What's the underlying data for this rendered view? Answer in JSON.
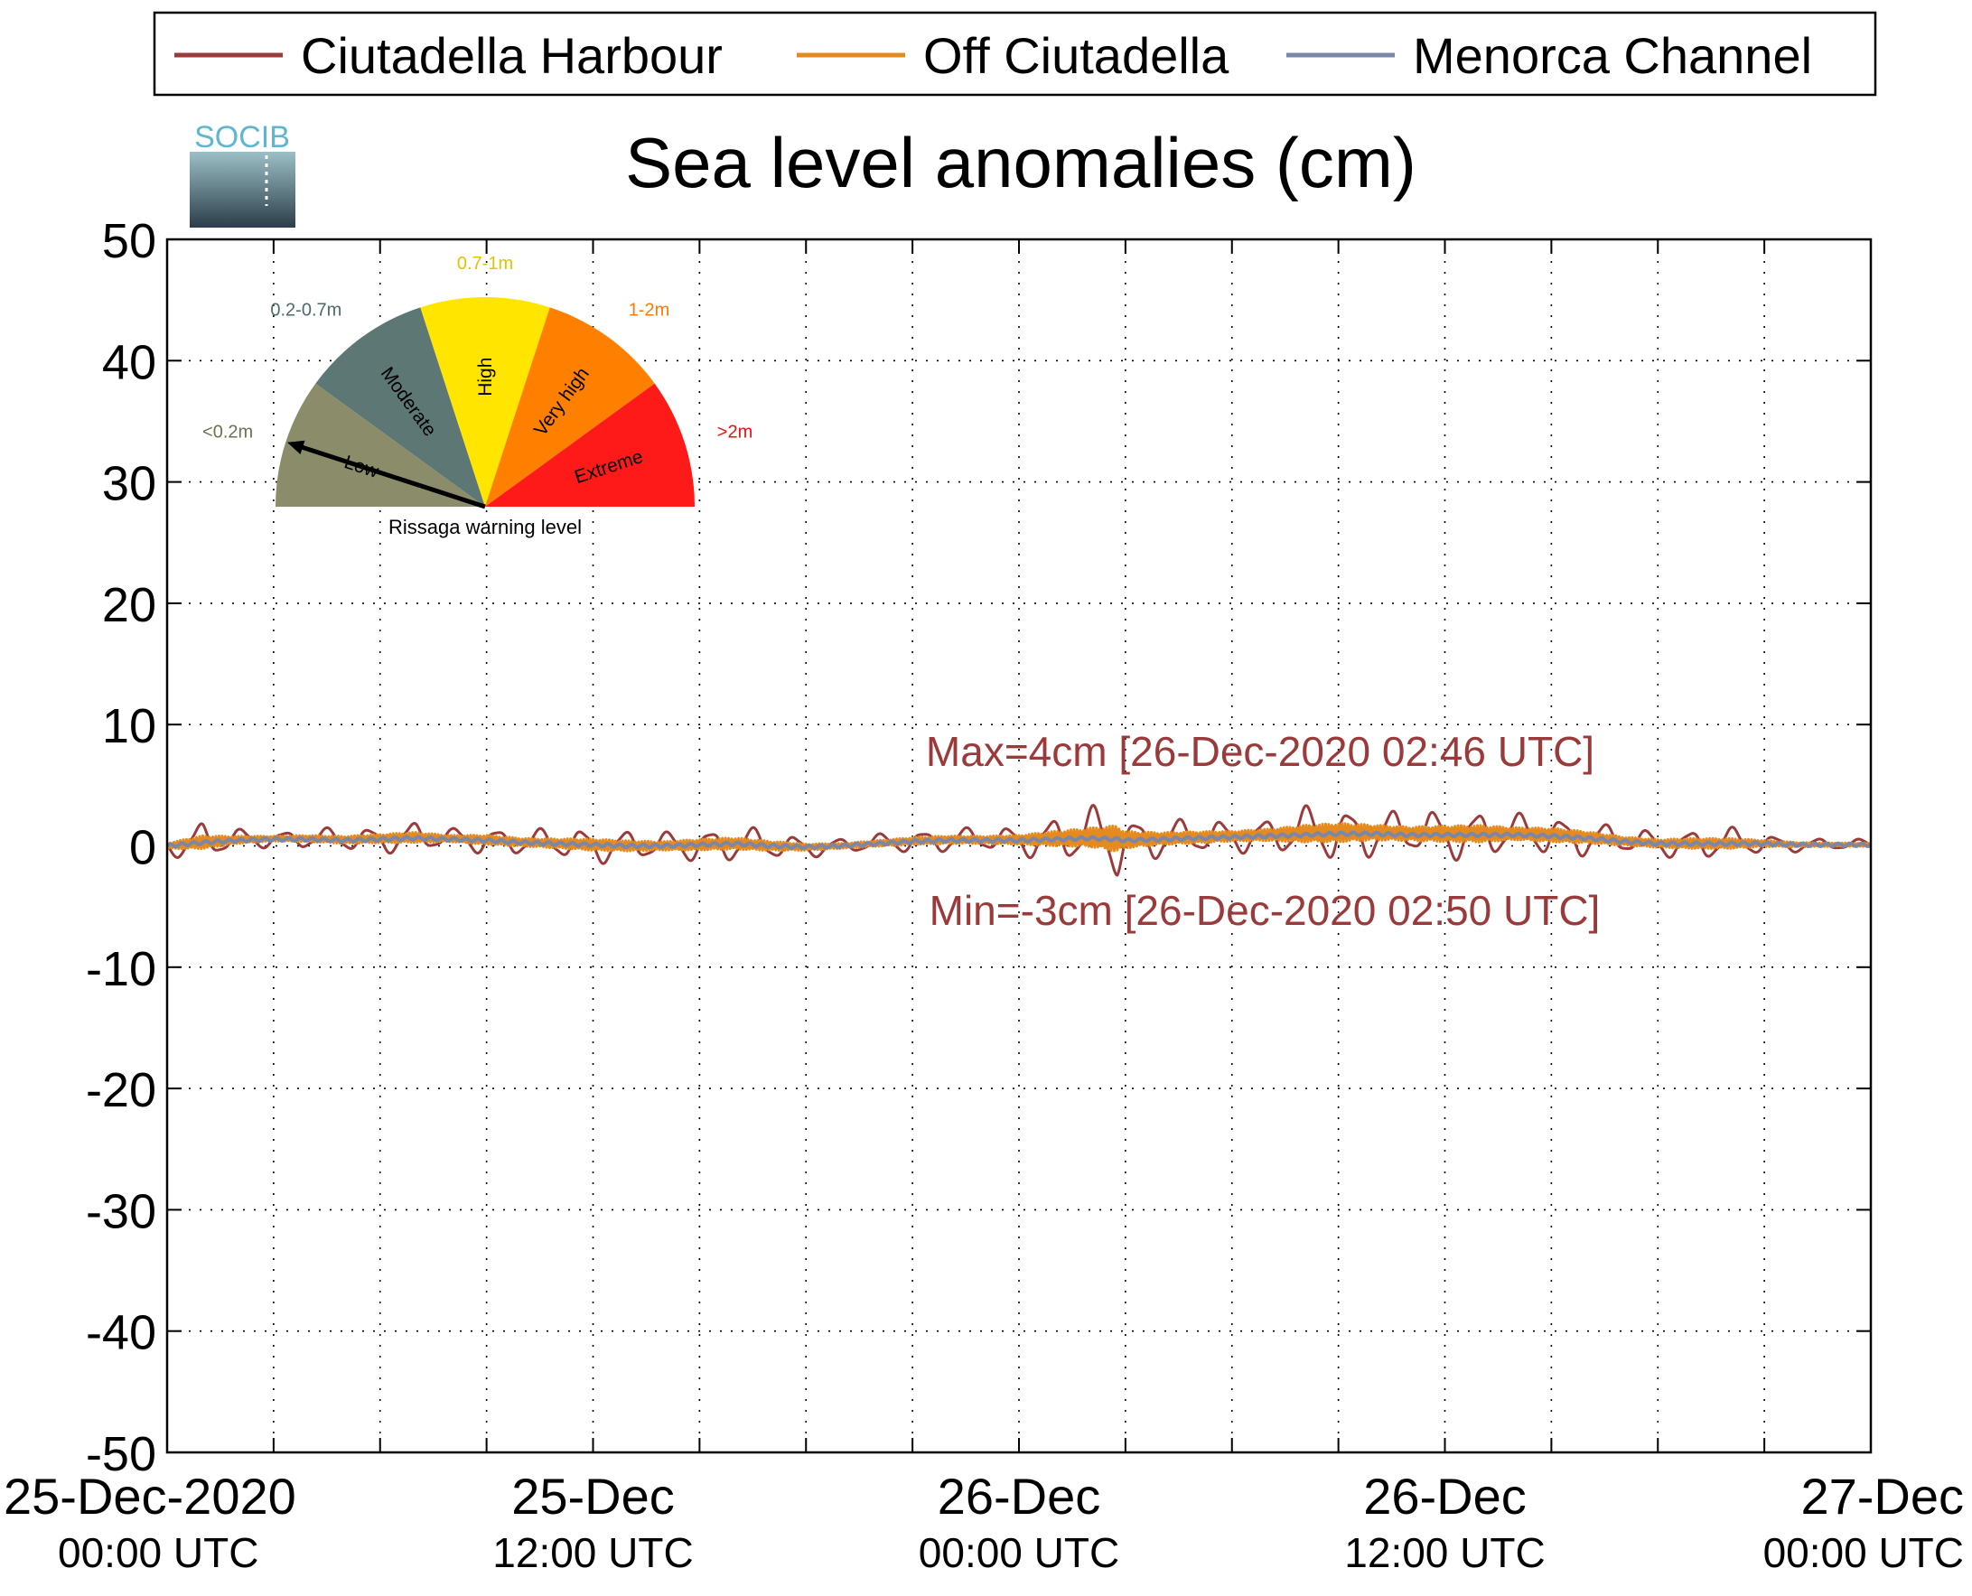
{
  "chart_data": {
    "type": "line",
    "title": "Sea level anomalies (cm)",
    "logo_text": "SOCIB",
    "ylim": [
      -50,
      50
    ],
    "y_ticks": [
      50,
      40,
      30,
      20,
      10,
      0,
      -10,
      -20,
      -30,
      -40,
      -50
    ],
    "x_range_hours": [
      0,
      48
    ],
    "x_tick_labels": [
      {
        "hour": 0,
        "line1": "25-Dec-2020",
        "line2": "00:00 UTC"
      },
      {
        "hour": 12,
        "line1": "25-Dec",
        "line2": "12:00 UTC"
      },
      {
        "hour": 24,
        "line1": "26-Dec",
        "line2": "00:00 UTC"
      },
      {
        "hour": 36,
        "line1": "26-Dec",
        "line2": "12:00 UTC"
      },
      {
        "hour": 48,
        "line1": "27-Dec",
        "line2": "00:00 UTC"
      }
    ],
    "grid": true,
    "legend_position": "top",
    "series": [
      {
        "name": "Ciutadella Harbour",
        "color": "#9b3a3a"
      },
      {
        "name": "Off Ciutadella",
        "color": "#e58a1f"
      },
      {
        "name": "Menorca Channel",
        "color": "#7a87a8"
      }
    ],
    "envelope": {
      "hours": [
        0,
        1,
        2,
        3,
        4,
        5,
        6,
        7,
        8,
        9,
        10,
        11,
        12,
        13,
        14,
        15,
        16,
        17,
        18,
        19,
        20,
        21,
        22,
        23,
        24,
        25,
        26,
        26.77,
        27,
        28,
        29,
        30,
        31,
        32,
        33,
        34,
        35,
        36,
        37,
        38,
        39,
        40,
        41,
        42,
        43,
        44,
        45,
        46,
        47,
        48
      ],
      "baseline": [
        0.0,
        0.3,
        0.5,
        0.6,
        0.6,
        0.5,
        0.6,
        0.7,
        0.6,
        0.5,
        0.3,
        0.2,
        0.1,
        0.0,
        0.0,
        0.1,
        0.2,
        0.0,
        -0.1,
        0.0,
        0.2,
        0.4,
        0.5,
        0.5,
        0.5,
        0.6,
        0.7,
        0.6,
        0.5,
        0.6,
        0.7,
        0.8,
        0.9,
        1.0,
        1.1,
        1.1,
        1.0,
        1.0,
        1.0,
        1.0,
        0.9,
        0.7,
        0.4,
        0.2,
        0.2,
        0.2,
        0.2,
        0.1,
        0.1,
        0.1
      ],
      "harbour_amplitude": [
        0.8,
        1.8,
        1.0,
        0.7,
        0.9,
        1.0,
        1.2,
        1.4,
        0.9,
        1.3,
        1.1,
        1.3,
        1.6,
        1.4,
        1.2,
        1.5,
        1.6,
        1.3,
        0.9,
        0.7,
        0.8,
        1.0,
        1.1,
        1.0,
        1.3,
        2.0,
        2.6,
        3.6,
        2.3,
        1.7,
        1.6,
        1.4,
        1.6,
        2.3,
        2.6,
        2.1,
        1.9,
        2.2,
        2.3,
        1.7,
        1.9,
        1.6,
        1.2,
        1.1,
        1.4,
        1.4,
        0.9,
        0.6,
        0.5,
        0.5
      ]
    },
    "annotations": [
      {
        "text": "Max=4cm [26-Dec-2020 02:46 UTC]",
        "x_hour": 26.77,
        "y": 4
      },
      {
        "text": "Min=-3cm [26-Dec-2020 02:50 UTC]",
        "x_hour": 26.83,
        "y": -3
      }
    ]
  },
  "gauge": {
    "caption": "Rissaga warning level",
    "level": "Low",
    "segments": [
      {
        "name": "Low",
        "range": "<0.2m",
        "color": "#8b8c6a",
        "range_color": "#6f6f55"
      },
      {
        "name": "Moderate",
        "range": "0.2-0.7m",
        "color": "#5d7775",
        "range_color": "#4e6a6a"
      },
      {
        "name": "High",
        "range": "0.7-1m",
        "color": "#ffe500",
        "range_color": "#e0c400"
      },
      {
        "name": "Very high",
        "range": "1-2m",
        "color": "#ff8000",
        "range_color": "#ff7a00"
      },
      {
        "name": "Extreme",
        "range": ">2m",
        "color": "#ff1a1a",
        "range_color": "#ee1111"
      }
    ]
  }
}
